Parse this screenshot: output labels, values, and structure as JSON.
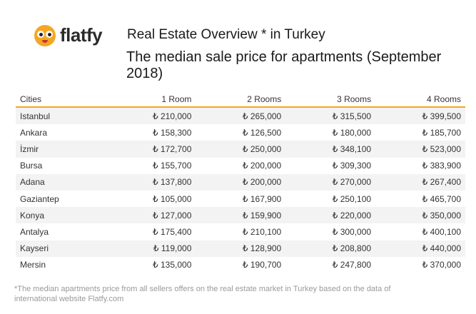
{
  "logo": {
    "text": "flatfy"
  },
  "title": {
    "line1": "Real Estate Overview * in Turkey",
    "line2": "The median sale price for apartments (September 2018)"
  },
  "table": {
    "headers": [
      "Cities",
      "1 Room",
      "2 Rooms",
      "3 Rooms",
      "4 Rooms"
    ],
    "rows": [
      [
        "Istanbul",
        "₺ 210,000",
        "₺ 265,000",
        "₺ 315,500",
        "₺ 399,500"
      ],
      [
        "Ankara",
        "₺ 158,300",
        "₺ 126,500",
        "₺ 180,000",
        "₺ 185,700"
      ],
      [
        "İzmir",
        "₺ 172,700",
        "₺ 250,000",
        "₺ 348,100",
        "₺ 523,000"
      ],
      [
        "Bursa",
        "₺ 155,700",
        "₺ 200,000",
        "₺ 309,300",
        "₺ 383,900"
      ],
      [
        "Adana",
        "₺ 137,800",
        "₺ 200,000",
        "₺ 270,000",
        "₺ 267,400"
      ],
      [
        "Gaziantep",
        "₺ 105,000",
        "₺ 167,900",
        "₺ 250,100",
        "₺ 465,700"
      ],
      [
        "Konya",
        "₺ 127,000",
        "₺ 159,900",
        "₺ 220,000",
        "₺ 350,000"
      ],
      [
        "Antalya",
        "₺ 175,400",
        "₺ 210,100",
        "₺ 300,000",
        "₺ 400,100"
      ],
      [
        "Kayseri",
        "₺ 119,000",
        "₺ 128,900",
        "₺ 208,800",
        "₺ 440,000"
      ],
      [
        "Mersin",
        "₺ 135,000",
        "₺ 190,700",
        "₺ 247,800",
        "₺ 370,000"
      ]
    ]
  },
  "footnote": "*The median apartments price from all sellers offers on the real estate market in Turkey based on the data of international website Flatfy.com",
  "colors": {
    "accent": "#f5a623",
    "stripe": "#f3f3f3"
  }
}
